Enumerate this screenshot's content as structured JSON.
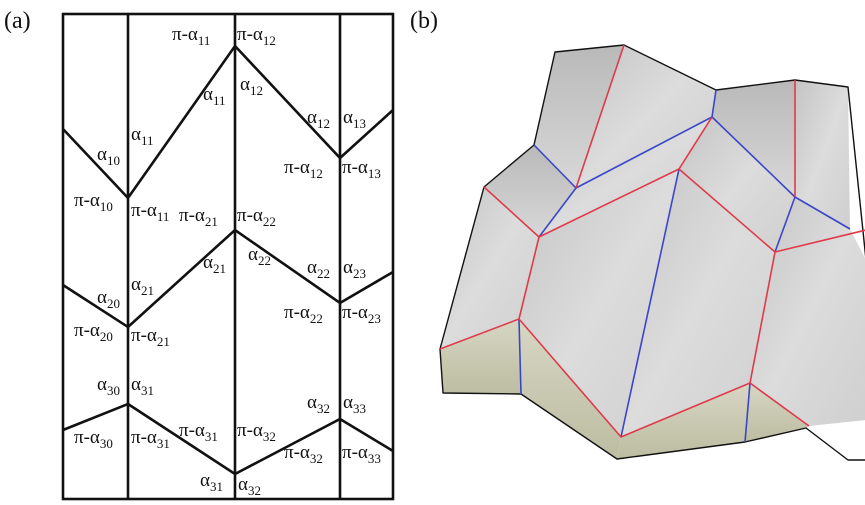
{
  "panel_a": {
    "tag": "(a)"
  },
  "panel_b": {
    "tag": "(b)"
  },
  "labels": {
    "pa11_top": {
      "pre": "π-α",
      "sub": "11"
    },
    "pa12_top": {
      "pre": "π-α",
      "sub": "12"
    },
    "a11_right": {
      "pre": "α",
      "sub": "11"
    },
    "a12_left": {
      "pre": "α",
      "sub": "12"
    },
    "a11_left": {
      "pre": "α",
      "sub": "11"
    },
    "a12_right": {
      "pre": "α",
      "sub": "12"
    },
    "a13": {
      "pre": "α",
      "sub": "13"
    },
    "a10": {
      "pre": "α",
      "sub": "10"
    },
    "pa12_mid": {
      "pre": "π-α",
      "sub": "12"
    },
    "pa13": {
      "pre": "π-α",
      "sub": "13"
    },
    "pa10": {
      "pre": "π-α",
      "sub": "10"
    },
    "pa11_mid": {
      "pre": "π-α",
      "sub": "11"
    },
    "pa21_top": {
      "pre": "π-α",
      "sub": "21"
    },
    "pa22_top": {
      "pre": "π-α",
      "sub": "22"
    },
    "a21_right": {
      "pre": "α",
      "sub": "21"
    },
    "a22_left": {
      "pre": "α",
      "sub": "22"
    },
    "a21_left": {
      "pre": "α",
      "sub": "21"
    },
    "a22_right": {
      "pre": "α",
      "sub": "22"
    },
    "a23": {
      "pre": "α",
      "sub": "23"
    },
    "a20": {
      "pre": "α",
      "sub": "20"
    },
    "pa22_mid": {
      "pre": "π-α",
      "sub": "22"
    },
    "pa23": {
      "pre": "π-α",
      "sub": "23"
    },
    "pa20": {
      "pre": "π-α",
      "sub": "20"
    },
    "pa21_mid": {
      "pre": "π-α",
      "sub": "21"
    },
    "a30": {
      "pre": "α",
      "sub": "30"
    },
    "a31_top": {
      "pre": "α",
      "sub": "31"
    },
    "a32_top": {
      "pre": "α",
      "sub": "32"
    },
    "a33": {
      "pre": "α",
      "sub": "33"
    },
    "pa31_top": {
      "pre": "π-α",
      "sub": "31"
    },
    "pa32_top": {
      "pre": "π-α",
      "sub": "32"
    },
    "pa30": {
      "pre": "π-α",
      "sub": "30"
    },
    "pa31_mid": {
      "pre": "π-α",
      "sub": "31"
    },
    "pa32_mid": {
      "pre": "π-α",
      "sub": "32"
    },
    "pa33": {
      "pre": "π-α",
      "sub": "33"
    },
    "a31_bot": {
      "pre": "α",
      "sub": "31"
    },
    "a32_bot": {
      "pre": "α",
      "sub": "32"
    }
  },
  "colors": {
    "line": "#111111",
    "mountain_fold": "#e03a4a",
    "valley_fold": "#3a46c8",
    "face_top": "#d3d3d3",
    "face_side": "#c9c9b2"
  }
}
